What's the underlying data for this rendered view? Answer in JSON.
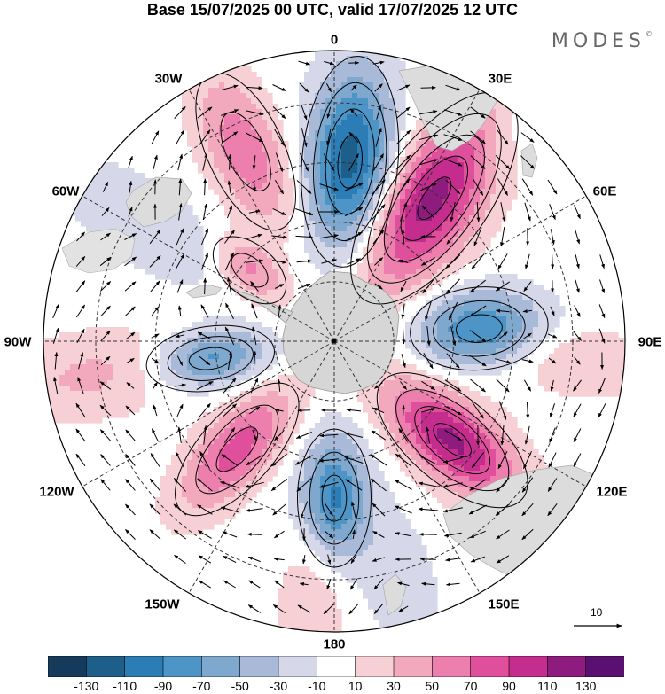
{
  "title": "Base 15/07/2025 00 UTC, valid 17/07/2025 12 UTC",
  "brand": "MODES",
  "brand_mark": "©",
  "longitude_labels": {
    "lon_0": "0",
    "lon_30e": "30E",
    "lon_60e": "60E",
    "lon_90e": "90E",
    "lon_120e": "120E",
    "lon_150e": "150E",
    "lon_180": "180",
    "lon_150w": "150W",
    "lon_120w": "120W",
    "lon_90w": "90W",
    "lon_60w": "60W",
    "lon_30w": "30W"
  },
  "reference_vector_label": "10",
  "colorbar": {
    "ticks": [
      "-130",
      "-110",
      "-90",
      "-70",
      "-50",
      "-30",
      "-10",
      "10",
      "30",
      "50",
      "70",
      "90",
      "110",
      "130"
    ],
    "colors": [
      "#163a5c",
      "#1d5f8a",
      "#2c7db5",
      "#4d95c6",
      "#7fa8cf",
      "#a9b9d8",
      "#d6d8ea",
      "#ffffff",
      "#f7d0d6",
      "#f3a9bd",
      "#ec7fad",
      "#e04f9c",
      "#c42c8e",
      "#8e1b7e",
      "#5a1070"
    ]
  },
  "colors": {
    "land": "#d6d6d6",
    "graticule": "#333333",
    "contour": "#000000"
  },
  "anomalies": [
    {
      "lon": 5,
      "rad": 0.62,
      "amp": -120,
      "sx": 0.1,
      "sy": 0.22
    },
    {
      "lon": 35,
      "rad": 0.6,
      "amp": 125,
      "sx": 0.11,
      "sy": 0.25
    },
    {
      "lon": 85,
      "rad": 0.5,
      "amp": -90,
      "sx": 0.09,
      "sy": 0.15
    },
    {
      "lon": 130,
      "rad": 0.53,
      "amp": 115,
      "sx": 0.09,
      "sy": 0.19
    },
    {
      "lon": 180,
      "rad": 0.54,
      "amp": -95,
      "sx": 0.08,
      "sy": 0.15
    },
    {
      "lon": 222,
      "rad": 0.5,
      "amp": 80,
      "sx": 0.08,
      "sy": 0.18
    },
    {
      "lon": 262,
      "rad": 0.43,
      "amp": -80,
      "sx": 0.07,
      "sy": 0.14
    },
    {
      "lon": 310,
      "rad": 0.38,
      "amp": 55,
      "sx": 0.06,
      "sy": 0.1
    },
    {
      "lon": 335,
      "rad": 0.72,
      "amp": 65,
      "sx": 0.09,
      "sy": 0.2
    },
    {
      "lon": 262,
      "rad": 0.82,
      "amp": 35,
      "sx": 0.1,
      "sy": 0.24
    },
    {
      "lon": 302,
      "rad": 0.76,
      "amp": -30,
      "sx": 0.1,
      "sy": 0.22
    },
    {
      "lon": 95,
      "rad": 0.86,
      "amp": 30,
      "sx": 0.08,
      "sy": 0.18
    },
    {
      "lon": 165,
      "rad": 0.86,
      "amp": -25,
      "sx": 0.09,
      "sy": 0.2
    },
    {
      "lon": 185,
      "rad": 0.92,
      "amp": 30,
      "sx": 0.08,
      "sy": 0.2
    },
    {
      "lon": 40,
      "rad": 0.9,
      "amp": -25,
      "sx": 0.08,
      "sy": 0.2
    }
  ]
}
